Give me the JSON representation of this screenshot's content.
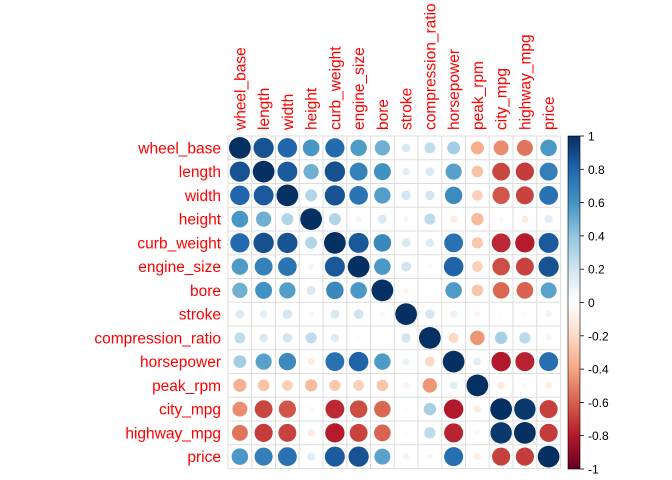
{
  "chart_data": {
    "type": "heatmap",
    "style": "circle correlation matrix",
    "title": "",
    "xlabel": "",
    "ylabel": "",
    "variables": [
      "wheel_base",
      "length",
      "width",
      "height",
      "curb_weight",
      "engine_size",
      "bore",
      "stroke",
      "compression_ratio",
      "horsepower",
      "peak_rpm",
      "city_mpg",
      "highway_mpg",
      "price"
    ],
    "values": [
      [
        1.0,
        0.87,
        0.8,
        0.59,
        0.78,
        0.57,
        0.49,
        0.16,
        0.25,
        0.35,
        -0.36,
        -0.47,
        -0.54,
        0.58
      ],
      [
        0.87,
        1.0,
        0.84,
        0.49,
        0.88,
        0.68,
        0.61,
        0.12,
        0.16,
        0.55,
        -0.29,
        -0.67,
        -0.7,
        0.69
      ],
      [
        0.8,
        0.84,
        1.0,
        0.3,
        0.87,
        0.74,
        0.56,
        0.19,
        0.19,
        0.64,
        -0.24,
        -0.63,
        -0.68,
        0.75
      ],
      [
        0.59,
        0.49,
        0.3,
        1.0,
        0.3,
        0.07,
        0.17,
        -0.06,
        0.26,
        -0.11,
        -0.32,
        -0.05,
        -0.11,
        0.14
      ],
      [
        0.78,
        0.88,
        0.87,
        0.3,
        1.0,
        0.85,
        0.65,
        0.17,
        0.15,
        0.75,
        -0.27,
        -0.75,
        -0.79,
        0.84
      ],
      [
        0.57,
        0.68,
        0.74,
        0.07,
        0.85,
        1.0,
        0.58,
        0.2,
        0.03,
        0.81,
        -0.24,
        -0.65,
        -0.68,
        0.87
      ],
      [
        0.49,
        0.61,
        0.56,
        0.17,
        0.65,
        0.58,
        1.0,
        -0.06,
        0.0,
        0.57,
        -0.28,
        -0.58,
        -0.59,
        0.54
      ],
      [
        0.16,
        0.12,
        0.19,
        -0.06,
        0.17,
        0.2,
        -0.06,
        1.0,
        0.19,
        0.1,
        -0.07,
        -0.03,
        -0.04,
        0.08
      ],
      [
        0.25,
        0.16,
        0.19,
        0.26,
        0.15,
        0.03,
        0.0,
        0.19,
        1.0,
        -0.21,
        -0.44,
        0.33,
        0.27,
        0.07
      ],
      [
        0.35,
        0.55,
        0.64,
        -0.11,
        0.75,
        0.81,
        0.57,
        0.1,
        -0.21,
        1.0,
        0.13,
        -0.8,
        -0.77,
        0.76
      ],
      [
        -0.36,
        -0.29,
        -0.24,
        -0.32,
        -0.27,
        -0.24,
        -0.28,
        -0.07,
        -0.44,
        0.13,
        1.0,
        -0.11,
        -0.05,
        -0.1
      ],
      [
        -0.47,
        -0.67,
        -0.63,
        -0.05,
        -0.75,
        -0.65,
        -0.58,
        -0.03,
        0.33,
        -0.8,
        -0.11,
        1.0,
        0.97,
        -0.69
      ],
      [
        -0.54,
        -0.7,
        -0.68,
        -0.11,
        -0.79,
        -0.68,
        -0.59,
        -0.04,
        0.27,
        -0.77,
        -0.05,
        0.97,
        1.0,
        -0.7
      ],
      [
        0.58,
        0.69,
        0.75,
        0.14,
        0.84,
        0.87,
        0.54,
        0.08,
        0.07,
        0.76,
        -0.1,
        -0.69,
        -0.7,
        1.0
      ]
    ],
    "color_scale": {
      "range": [
        -1,
        1
      ],
      "ticks": [
        "1",
        "0.8",
        "0.6",
        "0.4",
        "0.2",
        "0",
        "-0.2",
        "-0.4",
        "-0.6",
        "-0.8",
        "-1"
      ],
      "colors": [
        "#67001F",
        "#B2182B",
        "#D6604D",
        "#F4A582",
        "#FDDBC7",
        "#FFFFFF",
        "#D1E5F0",
        "#92C5DE",
        "#4393C3",
        "#2166AC",
        "#053061"
      ]
    },
    "label_color": "#FF0000",
    "grid": true,
    "legend_placement": "right"
  }
}
